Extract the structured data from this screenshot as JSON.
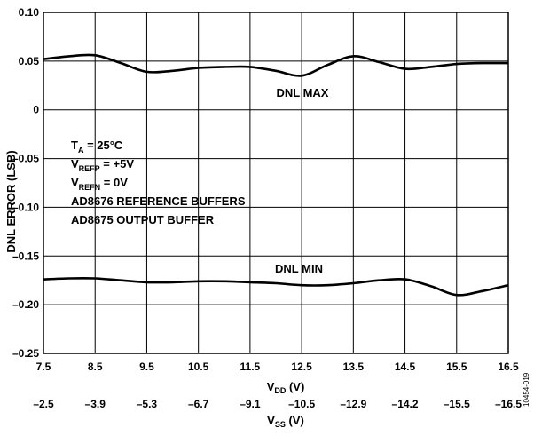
{
  "chart_data": {
    "type": "line",
    "ylabel": "DNL ERROR (LSB)",
    "xlabel_vdd_main": "V",
    "xlabel_vdd_sub": "DD",
    "xlabel_vdd_unit": " (V)",
    "xlabel_vss_main": "V",
    "xlabel_vss_sub": "SS",
    "xlabel_vss_unit": " (V)",
    "ylim": [
      -0.25,
      0.1
    ],
    "xlim": [
      7.5,
      16.5
    ],
    "grid": true,
    "yticks": [
      0.1,
      0.05,
      0,
      -0.05,
      -0.1,
      -0.15,
      -0.2,
      -0.25
    ],
    "ytick_labels": [
      "0.10",
      "0.05",
      "0",
      "–0.05",
      "–0.10",
      "–0.15",
      "–0.20",
      "–0.25"
    ],
    "xticks_vdd": [
      7.5,
      8.5,
      9.5,
      10.5,
      11.5,
      12.5,
      13.5,
      14.5,
      15.5,
      16.5
    ],
    "xtick_labels_vdd": [
      "7.5",
      "8.5",
      "9.5",
      "10.5",
      "11.5",
      "12.5",
      "13.5",
      "14.5",
      "15.5",
      "16.5"
    ],
    "xtick_labels_vss": [
      "–2.5",
      "–3.9",
      "–5.3",
      "–6.7",
      "–9.1",
      "–10.5",
      "–12.9",
      "–14.2",
      "–15.5",
      "–16.5"
    ],
    "series": [
      {
        "name": "DNL MAX",
        "x": [
          7.5,
          8.0,
          8.5,
          9.0,
          9.5,
          10.0,
          10.5,
          11.0,
          11.5,
          12.0,
          12.5,
          13.0,
          13.5,
          14.0,
          14.5,
          15.0,
          15.5,
          16.0,
          16.5
        ],
        "y": [
          0.052,
          0.055,
          0.056,
          0.048,
          0.039,
          0.04,
          0.043,
          0.044,
          0.044,
          0.04,
          0.035,
          0.046,
          0.055,
          0.049,
          0.042,
          0.044,
          0.047,
          0.048,
          0.048
        ]
      },
      {
        "name": "DNL MIN",
        "x": [
          7.5,
          8.0,
          8.5,
          9.0,
          9.5,
          10.0,
          10.5,
          11.0,
          11.5,
          12.0,
          12.5,
          13.0,
          13.5,
          14.0,
          14.5,
          15.0,
          15.5,
          16.0,
          16.5
        ],
        "y": [
          -0.174,
          -0.173,
          -0.173,
          -0.175,
          -0.177,
          -0.177,
          -0.176,
          -0.176,
          -0.177,
          -0.178,
          -0.18,
          -0.18,
          -0.178,
          -0.175,
          -0.174,
          -0.181,
          -0.19,
          -0.186,
          -0.18
        ]
      }
    ],
    "annotations": {
      "series_label_max": "DNL MAX",
      "series_label_min": "DNL MIN",
      "cond_ta_main": "T",
      "cond_ta_sub": "A",
      "cond_ta_rest": " = 25°C",
      "cond_refp_main": "V",
      "cond_refp_sub": "REFP",
      "cond_refp_rest": " = +5V",
      "cond_refn_main": "V",
      "cond_refn_sub": "REFN",
      "cond_refn_rest": " = 0V",
      "cond_line4": "AD8676 REFERENCE BUFFERS",
      "cond_line5": "AD8675 OUTPUT BUFFER",
      "figure_id": "10454-019"
    }
  }
}
